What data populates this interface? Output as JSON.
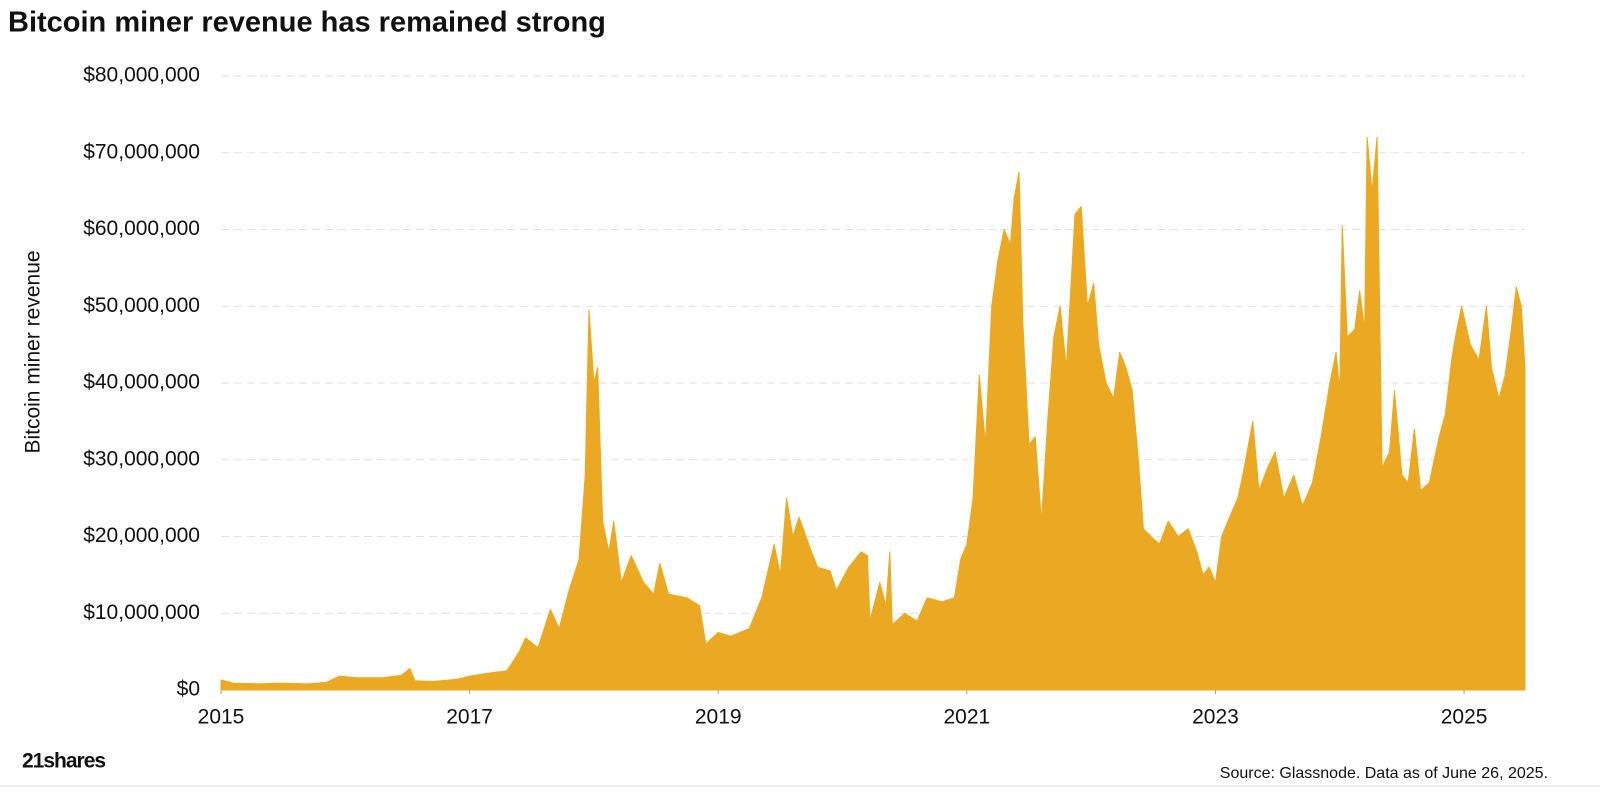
{
  "chart_data": {
    "type": "area",
    "title": "Bitcoin miner revenue has remained strong",
    "y_label": "Bitcoin miner revenue",
    "source": "Source: Glassnode. Data as of June 26, 2025.",
    "logo": "21shares",
    "color": "#eba823",
    "grid": true,
    "xlim": [
      2015,
      2025.49
    ],
    "xticks": [
      2015,
      2017,
      2019,
      2021,
      2023,
      2025
    ],
    "ylim": [
      0,
      80000000
    ],
    "yticks": [
      {
        "value": 0,
        "label": "$0"
      },
      {
        "value": 10000000,
        "label": "$10,000,000"
      },
      {
        "value": 20000000,
        "label": "$20,000,000"
      },
      {
        "value": 30000000,
        "label": "$30,000,000"
      },
      {
        "value": 40000000,
        "label": "$40,000,000"
      },
      {
        "value": 50000000,
        "label": "$50,000,000"
      },
      {
        "value": 60000000,
        "label": "$60,000,000"
      },
      {
        "value": 70000000,
        "label": "$70,000,000"
      },
      {
        "value": 80000000,
        "label": "$80,000,000"
      }
    ],
    "x": [
      2015.0,
      2015.1,
      2015.3,
      2015.5,
      2015.7,
      2015.85,
      2015.95,
      2016.1,
      2016.3,
      2016.45,
      2016.52,
      2016.56,
      2016.7,
      2016.9,
      2017.0,
      2017.15,
      2017.3,
      2017.4,
      2017.45,
      2017.55,
      2017.65,
      2017.72,
      2017.8,
      2017.88,
      2017.93,
      2017.96,
      2018.0,
      2018.03,
      2018.07,
      2018.12,
      2018.16,
      2018.22,
      2018.3,
      2018.4,
      2018.48,
      2018.53,
      2018.6,
      2018.75,
      2018.85,
      2018.9,
      2019.0,
      2019.1,
      2019.25,
      2019.35,
      2019.45,
      2019.5,
      2019.55,
      2019.6,
      2019.65,
      2019.75,
      2019.8,
      2019.9,
      2019.95,
      2020.05,
      2020.15,
      2020.2,
      2020.22,
      2020.3,
      2020.35,
      2020.38,
      2020.4,
      2020.5,
      2020.6,
      2020.68,
      2020.8,
      2020.9,
      2020.95,
      2021.0,
      2021.05,
      2021.1,
      2021.15,
      2021.2,
      2021.25,
      2021.3,
      2021.35,
      2021.38,
      2021.42,
      2021.45,
      2021.5,
      2021.55,
      2021.6,
      2021.65,
      2021.7,
      2021.75,
      2021.8,
      2021.87,
      2021.92,
      2021.97,
      2022.02,
      2022.06,
      2022.12,
      2022.18,
      2022.23,
      2022.28,
      2022.33,
      2022.38,
      2022.42,
      2022.48,
      2022.55,
      2022.62,
      2022.7,
      2022.78,
      2022.85,
      2022.9,
      2022.95,
      2023.0,
      2023.05,
      2023.1,
      2023.18,
      2023.22,
      2023.3,
      2023.35,
      2023.42,
      2023.48,
      2023.55,
      2023.63,
      2023.7,
      2023.78,
      2023.85,
      2023.92,
      2023.97,
      2024.0,
      2024.02,
      2024.06,
      2024.12,
      2024.16,
      2024.2,
      2024.22,
      2024.26,
      2024.3,
      2024.34,
      2024.4,
      2024.44,
      2024.5,
      2024.55,
      2024.6,
      2024.65,
      2024.72,
      2024.8,
      2024.85,
      2024.9,
      2024.93,
      2024.98,
      2025.05,
      2025.12,
      2025.18,
      2025.22,
      2025.28,
      2025.33,
      2025.38,
      2025.42,
      2025.46,
      2025.49
    ],
    "values": [
      1300000,
      900000,
      800000,
      900000,
      800000,
      1000000,
      1800000,
      1600000,
      1600000,
      1900000,
      2800000,
      1200000,
      1100000,
      1400000,
      1800000,
      2200000,
      2500000,
      5000000,
      6800000,
      5500000,
      10500000,
      8000000,
      13000000,
      17000000,
      28000000,
      49500000,
      40000000,
      42000000,
      22000000,
      18000000,
      22000000,
      14000000,
      17500000,
      14000000,
      12500000,
      16500000,
      12500000,
      12000000,
      11000000,
      6000000,
      7500000,
      7000000,
      8000000,
      12000000,
      19000000,
      15000000,
      25000000,
      20000000,
      22500000,
      18000000,
      16000000,
      15500000,
      13000000,
      16000000,
      18000000,
      17500000,
      9000000,
      14000000,
      11000000,
      18000000,
      8500000,
      10000000,
      9000000,
      12000000,
      11500000,
      12000000,
      17000000,
      19000000,
      25000000,
      41000000,
      32000000,
      50000000,
      56000000,
      60000000,
      58000000,
      64000000,
      67500000,
      48000000,
      32000000,
      33000000,
      22000000,
      35000000,
      46000000,
      50000000,
      42000000,
      62000000,
      63000000,
      50000000,
      53000000,
      45000000,
      40000000,
      38000000,
      44000000,
      42000000,
      39000000,
      30000000,
      21000000,
      20000000,
      19000000,
      22000000,
      20000000,
      21000000,
      18000000,
      15000000,
      16000000,
      14000000,
      20000000,
      22000000,
      25000000,
      28000000,
      35000000,
      26000000,
      29000000,
      31000000,
      25000000,
      28000000,
      24000000,
      27000000,
      33000000,
      40000000,
      44000000,
      39000000,
      60500000,
      46000000,
      47000000,
      52000000,
      47000000,
      72000000,
      65000000,
      72000000,
      29000000,
      31000000,
      39000000,
      28000000,
      27000000,
      34000000,
      26000000,
      27000000,
      33000000,
      36000000,
      43000000,
      46000000,
      50000000,
      45000000,
      43000000,
      50000000,
      42000000,
      38000000,
      41000000,
      47000000,
      52500000,
      50000000,
      42000000
    ]
  }
}
